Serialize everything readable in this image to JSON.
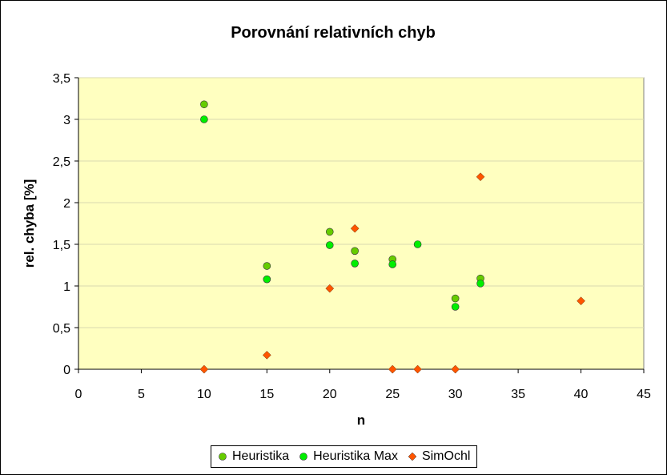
{
  "chart_data": {
    "type": "scatter",
    "title": "Porovnání relativních chyb",
    "xlabel": "n",
    "ylabel": "rel. chyba [%]",
    "xlim": [
      0,
      45
    ],
    "ylim": [
      0,
      3.5
    ],
    "xticks": [
      "0",
      "5",
      "10",
      "15",
      "20",
      "25",
      "30",
      "35",
      "40",
      "45"
    ],
    "yticks": [
      "0",
      "0,5",
      "1",
      "1,5",
      "2",
      "2,5",
      "3",
      "3,5"
    ],
    "grid": "horizontal",
    "plot_background": "#ffffc0",
    "legend_position": "bottom",
    "series": [
      {
        "name": "Heuristika",
        "marker": "circle",
        "color": "#66cc00",
        "points": [
          [
            10,
            3.18
          ],
          [
            15,
            1.24
          ],
          [
            20,
            1.65
          ],
          [
            22,
            1.42
          ],
          [
            25,
            1.32
          ],
          [
            30,
            0.85
          ],
          [
            32,
            1.09
          ]
        ]
      },
      {
        "name": "Heuristika Max",
        "marker": "circle",
        "color": "#00ee00",
        "points": [
          [
            10,
            3.0
          ],
          [
            15,
            1.08
          ],
          [
            20,
            1.49
          ],
          [
            22,
            1.27
          ],
          [
            25,
            1.26
          ],
          [
            27,
            1.5
          ],
          [
            30,
            0.75
          ],
          [
            32,
            1.03
          ]
        ]
      },
      {
        "name": "SimOchl",
        "marker": "diamond",
        "color": "#ff5500",
        "points": [
          [
            10,
            0.0
          ],
          [
            15,
            0.17
          ],
          [
            20,
            0.97
          ],
          [
            22,
            1.69
          ],
          [
            25,
            0.0
          ],
          [
            27,
            0.0
          ],
          [
            30,
            0.0
          ],
          [
            32,
            2.31
          ],
          [
            40,
            0.82
          ]
        ]
      }
    ]
  }
}
